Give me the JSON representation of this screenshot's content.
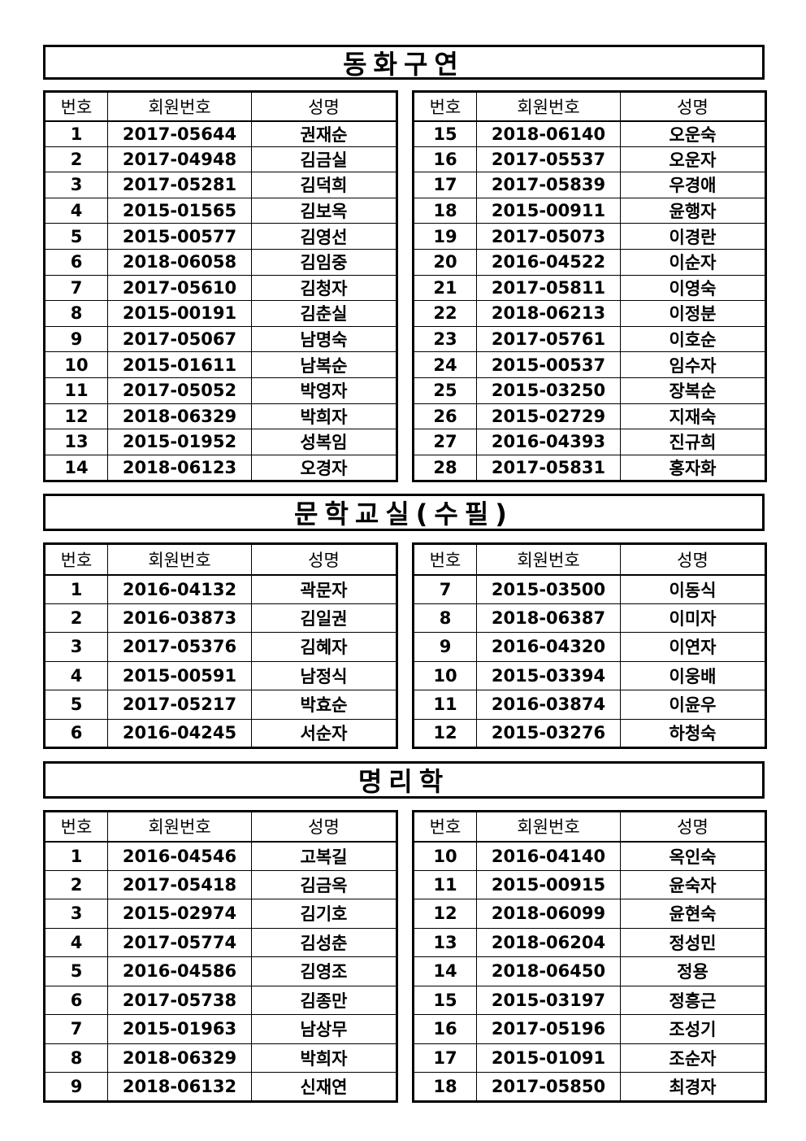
{
  "columns": [
    "번호",
    "회원번호",
    "성명"
  ],
  "sections": [
    {
      "title": "동화구연",
      "left": [
        [
          "1",
          "2017-05644",
          "권재순"
        ],
        [
          "2",
          "2017-04948",
          "김금실"
        ],
        [
          "3",
          "2017-05281",
          "김덕희"
        ],
        [
          "4",
          "2015-01565",
          "김보옥"
        ],
        [
          "5",
          "2015-00577",
          "김영선"
        ],
        [
          "6",
          "2018-06058",
          "김임중"
        ],
        [
          "7",
          "2017-05610",
          "김청자"
        ],
        [
          "8",
          "2015-00191",
          "김춘실"
        ],
        [
          "9",
          "2017-05067",
          "남명숙"
        ],
        [
          "10",
          "2015-01611",
          "남복순"
        ],
        [
          "11",
          "2017-05052",
          "박영자"
        ],
        [
          "12",
          "2018-06329",
          "박희자"
        ],
        [
          "13",
          "2015-01952",
          "성복임"
        ],
        [
          "14",
          "2018-06123",
          "오경자"
        ]
      ],
      "right": [
        [
          "15",
          "2018-06140",
          "오운숙"
        ],
        [
          "16",
          "2017-05537",
          "오운자"
        ],
        [
          "17",
          "2017-05839",
          "우경애"
        ],
        [
          "18",
          "2015-00911",
          "윤행자"
        ],
        [
          "19",
          "2017-05073",
          "이경란"
        ],
        [
          "20",
          "2016-04522",
          "이순자"
        ],
        [
          "21",
          "2017-05811",
          "이영숙"
        ],
        [
          "22",
          "2018-06213",
          "이정분"
        ],
        [
          "23",
          "2017-05761",
          "이호순"
        ],
        [
          "24",
          "2015-00537",
          "임수자"
        ],
        [
          "25",
          "2015-03250",
          "장복순"
        ],
        [
          "26",
          "2015-02729",
          "지재숙"
        ],
        [
          "27",
          "2016-04393",
          "진규희"
        ],
        [
          "28",
          "2017-05831",
          "홍자화"
        ]
      ]
    },
    {
      "title": "문학교실(수필)",
      "left": [
        [
          "1",
          "2016-04132",
          "곽문자"
        ],
        [
          "2",
          "2016-03873",
          "김일권"
        ],
        [
          "3",
          "2017-05376",
          "김혜자"
        ],
        [
          "4",
          "2015-00591",
          "남정식"
        ],
        [
          "5",
          "2017-05217",
          "박효순"
        ],
        [
          "6",
          "2016-04245",
          "서순자"
        ]
      ],
      "right": [
        [
          "7",
          "2015-03500",
          "이동식"
        ],
        [
          "8",
          "2018-06387",
          "이미자"
        ],
        [
          "9",
          "2016-04320",
          "이연자"
        ],
        [
          "10",
          "2015-03394",
          "이웅배"
        ],
        [
          "11",
          "2016-03874",
          "이윤우"
        ],
        [
          "12",
          "2015-03276",
          "하청숙"
        ]
      ]
    },
    {
      "title": "명리학",
      "left": [
        [
          "1",
          "2016-04546",
          "고복길"
        ],
        [
          "2",
          "2017-05418",
          "김금옥"
        ],
        [
          "3",
          "2015-02974",
          "김기호"
        ],
        [
          "4",
          "2017-05774",
          "김성춘"
        ],
        [
          "5",
          "2016-04586",
          "김영조"
        ],
        [
          "6",
          "2017-05738",
          "김종만"
        ],
        [
          "7",
          "2015-01963",
          "남상무"
        ],
        [
          "8",
          "2018-06329",
          "박희자"
        ],
        [
          "9",
          "2018-06132",
          "신재연"
        ]
      ],
      "right": [
        [
          "10",
          "2016-04140",
          "옥인숙"
        ],
        [
          "11",
          "2015-00915",
          "윤숙자"
        ],
        [
          "12",
          "2018-06099",
          "윤현숙"
        ],
        [
          "13",
          "2018-06204",
          "정성민"
        ],
        [
          "14",
          "2018-06450",
          "정용"
        ],
        [
          "15",
          "2015-03197",
          "정흥근"
        ],
        [
          "16",
          "2017-05196",
          "조성기"
        ],
        [
          "17",
          "2015-01091",
          "조순자"
        ],
        [
          "18",
          "2017-05850",
          "최경자"
        ]
      ]
    }
  ]
}
